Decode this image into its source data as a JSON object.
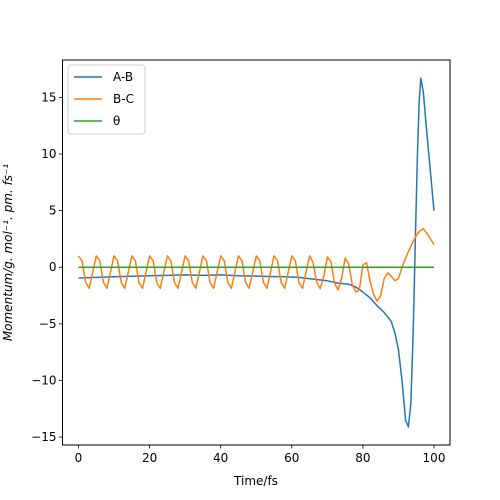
{
  "chart_data": {
    "type": "line",
    "title": "",
    "xlabel": "Time/fs",
    "ylabel": "Momentum/g. mol⁻¹. pm. fs⁻¹",
    "xlim": [
      -4.5,
      104.5
    ],
    "ylim": [
      -15.7,
      18.3
    ],
    "xticks": [
      0,
      20,
      40,
      60,
      80,
      100
    ],
    "yticks": [
      -15,
      -10,
      -5,
      0,
      5,
      10,
      15
    ],
    "grid": false,
    "legend_position": "top-left",
    "series": [
      {
        "name": "A-B",
        "color": "#1f77b4",
        "x": [
          0,
          5,
          10,
          15,
          20,
          25,
          30,
          35,
          40,
          45,
          50,
          55,
          58,
          62,
          66,
          70,
          73,
          76,
          78,
          80,
          82,
          84,
          86,
          88,
          89,
          90,
          91,
          92,
          92.8,
          93.5,
          94.2,
          94.8,
          95.3,
          95.8,
          96.3,
          97,
          97.8,
          98.6,
          99.4,
          100
        ],
        "y": [
          -0.95,
          -0.9,
          -0.85,
          -0.8,
          -0.75,
          -0.72,
          -0.68,
          -0.72,
          -0.68,
          -0.75,
          -0.78,
          -0.83,
          -0.85,
          -0.9,
          -1.05,
          -1.2,
          -1.4,
          -1.5,
          -1.75,
          -2.2,
          -2.7,
          -3.4,
          -4.0,
          -4.8,
          -5.8,
          -7.3,
          -10.0,
          -13.5,
          -14.1,
          -12.0,
          -5.0,
          3.0,
          9.5,
          14.5,
          16.7,
          15.5,
          12.5,
          9.8,
          7.0,
          5.0
        ]
      },
      {
        "name": "B-C",
        "color": "#ff7f0e",
        "x": [
          0,
          1,
          2,
          3,
          4,
          5,
          6,
          7,
          8,
          9,
          10,
          11,
          12,
          13,
          14,
          15,
          16,
          17,
          18,
          19,
          20,
          21,
          22,
          23,
          24,
          25,
          26,
          27,
          28,
          29,
          30,
          31,
          32,
          33,
          34,
          35,
          36,
          37,
          38,
          39,
          40,
          41,
          42,
          43,
          44,
          45,
          46,
          47,
          48,
          49,
          50,
          51,
          52,
          53,
          54,
          55,
          56,
          57,
          58,
          59,
          60,
          61,
          62,
          63,
          64,
          65,
          66,
          67,
          68,
          69,
          70,
          71,
          72,
          73,
          74,
          75,
          76,
          77,
          78,
          79,
          80,
          81,
          82,
          83,
          84,
          85,
          86,
          87,
          88,
          89,
          90,
          91,
          92,
          93,
          94,
          95,
          96,
          97,
          98,
          99,
          100
        ],
        "y": [
          1.0,
          0.56,
          -1.34,
          -1.86,
          -0.44,
          1.0,
          0.56,
          -1.34,
          -1.86,
          -0.44,
          1.0,
          0.56,
          -1.34,
          -1.86,
          -0.44,
          1.0,
          0.56,
          -1.34,
          -1.86,
          -0.44,
          1.0,
          0.56,
          -1.34,
          -1.86,
          -0.44,
          1.0,
          0.56,
          -1.34,
          -1.86,
          -0.44,
          1.0,
          0.56,
          -1.34,
          -1.86,
          -0.44,
          1.0,
          0.56,
          -1.34,
          -1.86,
          -0.44,
          1.0,
          0.56,
          -1.34,
          -1.86,
          -0.44,
          1.0,
          0.56,
          -1.34,
          -1.86,
          -0.44,
          1.0,
          0.56,
          -1.34,
          -1.86,
          -0.44,
          1.0,
          0.56,
          -1.34,
          -1.86,
          -0.44,
          1.0,
          0.56,
          -1.34,
          -1.86,
          -0.44,
          1.0,
          0.4,
          -1.3,
          -1.9,
          -0.8,
          0.9,
          0.5,
          -1.4,
          -2.0,
          -1.0,
          0.8,
          0.3,
          -1.5,
          -2.2,
          -2.0,
          0.2,
          0.4,
          -1.2,
          -2.4,
          -3.0,
          -2.5,
          -1.0,
          -0.5,
          -0.8,
          -1.2,
          -1.0,
          0.0,
          0.8,
          1.5,
          2.2,
          2.8,
          3.2,
          3.4,
          3.0,
          2.5,
          2.0
        ]
      },
      {
        "name": "θ",
        "color": "#2ca02c",
        "x": [
          0,
          100
        ],
        "y": [
          0,
          0
        ]
      }
    ]
  }
}
